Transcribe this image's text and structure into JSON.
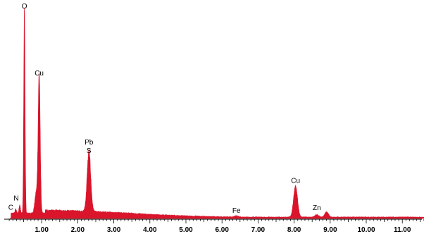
{
  "chart_data": {
    "type": "area",
    "title": "",
    "xlabel": "",
    "ylabel": "",
    "xlim": [
      0,
      11.6
    ],
    "ylim": [
      0,
      100
    ],
    "grid": false,
    "fill_color": "#d9142b",
    "axis_color": "#000000",
    "x_ticks": [
      {
        "value": 1,
        "label": "1.00"
      },
      {
        "value": 2,
        "label": "2.00"
      },
      {
        "value": 3,
        "label": "3.00"
      },
      {
        "value": 4,
        "label": "4.00"
      },
      {
        "value": 5,
        "label": "5.00"
      },
      {
        "value": 6,
        "label": "6.00"
      },
      {
        "value": 7,
        "label": "7.00"
      },
      {
        "value": 8,
        "label": "8.00"
      },
      {
        "value": 9,
        "label": "9.00"
      },
      {
        "value": 10,
        "label": "10.00"
      },
      {
        "value": 11,
        "label": "11.00"
      }
    ],
    "peaks": [
      {
        "x": 0.52,
        "y": 100,
        "label": "O"
      },
      {
        "x": 0.93,
        "y": 68,
        "label": "Cu"
      },
      {
        "x": 2.31,
        "y": 29,
        "label": "Pb"
      },
      {
        "x": 2.31,
        "y": 29,
        "label": "S"
      },
      {
        "x": 0.39,
        "y": 6,
        "label": "N"
      },
      {
        "x": 0.28,
        "y": 3,
        "label": "C"
      },
      {
        "x": 8.04,
        "y": 15,
        "label": "Cu"
      },
      {
        "x": 6.4,
        "y": 1,
        "label": "Fe"
      },
      {
        "x": 8.63,
        "y": 2,
        "label": "Zn"
      }
    ]
  }
}
